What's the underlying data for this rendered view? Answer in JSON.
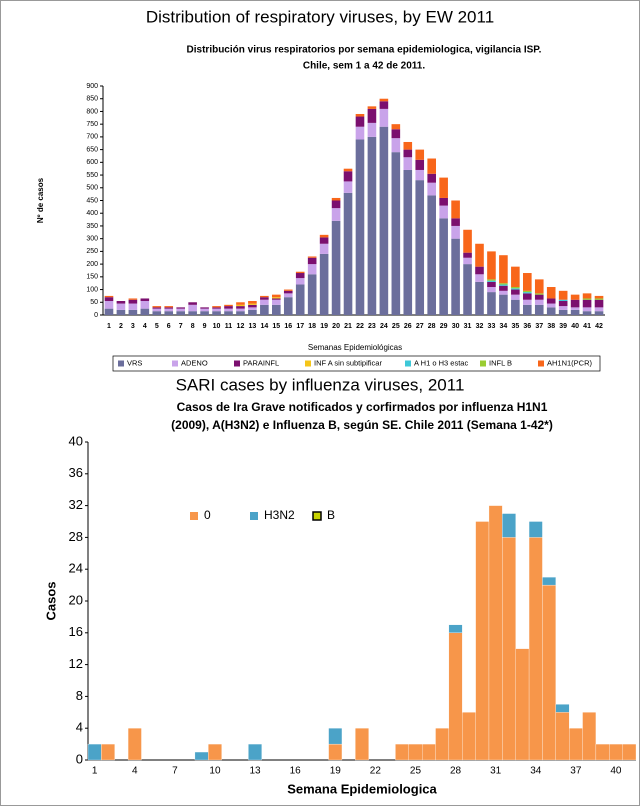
{
  "chart_data": [
    {
      "type": "bar",
      "stacked": true,
      "heading": "Distribution of respiratory viruses, by EW 2011",
      "title": [
        "Distribución virus respiratorios por semana epidemiologica, vigilancia ISP.",
        "Chile, sem 1 a 42 de 2011."
      ],
      "y_label": "Nº de casos",
      "x_label": "Semanas Epidemiológicas",
      "categories": [
        "1",
        "2",
        "3",
        "4",
        "5",
        "6",
        "7",
        "8",
        "9",
        "10",
        "11",
        "12",
        "13",
        "14",
        "15",
        "16",
        "17",
        "18",
        "19",
        "20",
        "21",
        "22",
        "23",
        "24",
        "25",
        "26",
        "27",
        "28",
        "29",
        "30",
        "31",
        "32",
        "33",
        "34",
        "35",
        "36",
        "37",
        "38",
        "39",
        "40",
        "41",
        "42"
      ],
      "ylim": [
        0,
        900
      ],
      "yticks": [
        0,
        50,
        100,
        150,
        200,
        250,
        300,
        350,
        400,
        450,
        500,
        550,
        600,
        650,
        700,
        750,
        800,
        850,
        900
      ],
      "legend": "bottom",
      "series": [
        {
          "name": "VRS",
          "color": "#6b6e9c",
          "values": [
            25,
            20,
            20,
            25,
            15,
            15,
            15,
            15,
            15,
            15,
            15,
            15,
            20,
            40,
            40,
            70,
            120,
            160,
            240,
            370,
            480,
            690,
            700,
            740,
            640,
            570,
            530,
            470,
            380,
            300,
            200,
            130,
            90,
            80,
            60,
            40,
            40,
            30,
            20,
            20,
            15,
            15
          ]
        },
        {
          "name": "ADENO",
          "color": "#c9a3ea",
          "values": [
            30,
            25,
            25,
            30,
            10,
            10,
            10,
            25,
            10,
            10,
            10,
            10,
            10,
            20,
            20,
            15,
            25,
            40,
            40,
            50,
            45,
            50,
            55,
            70,
            55,
            50,
            40,
            50,
            50,
            50,
            25,
            30,
            20,
            15,
            20,
            20,
            20,
            15,
            15,
            10,
            15,
            15
          ]
        },
        {
          "name": "PARAINFL",
          "color": "#7b0f6f",
          "values": [
            15,
            10,
            15,
            10,
            5,
            5,
            5,
            10,
            5,
            5,
            10,
            10,
            10,
            10,
            5,
            10,
            20,
            25,
            25,
            30,
            40,
            40,
            55,
            30,
            35,
            30,
            40,
            35,
            30,
            30,
            20,
            30,
            20,
            20,
            20,
            25,
            20,
            20,
            20,
            30,
            30,
            30
          ]
        },
        {
          "name": "INF A sin subtipificar",
          "color": "#f5c518",
          "values": [
            0,
            0,
            0,
            0,
            0,
            0,
            0,
            0,
            0,
            0,
            0,
            5,
            5,
            0,
            5,
            0,
            0,
            0,
            0,
            0,
            0,
            0,
            0,
            0,
            0,
            0,
            0,
            0,
            0,
            0,
            0,
            0,
            0,
            0,
            0,
            0,
            0,
            0,
            0,
            0,
            0,
            0
          ]
        },
        {
          "name": "A H1 o H3 estac",
          "color": "#3ec8d8",
          "values": [
            0,
            0,
            0,
            0,
            0,
            0,
            0,
            0,
            0,
            0,
            0,
            0,
            0,
            0,
            0,
            0,
            0,
            0,
            0,
            0,
            0,
            0,
            0,
            0,
            0,
            0,
            0,
            0,
            0,
            0,
            0,
            0,
            5,
            5,
            5,
            5,
            0,
            0,
            5,
            0,
            0,
            0
          ]
        },
        {
          "name": "INFL B",
          "color": "#9acd32",
          "values": [
            0,
            0,
            0,
            0,
            0,
            0,
            0,
            0,
            0,
            0,
            0,
            0,
            0,
            0,
            0,
            0,
            0,
            0,
            0,
            0,
            0,
            0,
            0,
            0,
            0,
            0,
            0,
            0,
            0,
            0,
            0,
            0,
            5,
            5,
            5,
            5,
            5,
            0,
            0,
            0,
            5,
            5
          ]
        },
        {
          "name": "AH1N1(PCR)",
          "color": "#f8661a",
          "values": [
            5,
            0,
            5,
            0,
            5,
            5,
            0,
            0,
            0,
            5,
            5,
            10,
            10,
            5,
            10,
            5,
            5,
            5,
            10,
            10,
            10,
            10,
            10,
            10,
            20,
            30,
            40,
            60,
            80,
            70,
            90,
            90,
            110,
            110,
            80,
            70,
            55,
            45,
            35,
            20,
            20,
            10
          ]
        }
      ]
    },
    {
      "type": "bar",
      "stacked": true,
      "heading": "SARI cases by influenza viruses, 2011",
      "title": [
        "Casos de Ira Grave notificados y corfirmados por influenza H1N1",
        "(2009), A(H3N2) e Influenza B, según SE. Chile 2011 (Semana 1-42*)"
      ],
      "y_label": "Casos",
      "x_label": "Semana Epidemiologica",
      "categories": [
        "1",
        null,
        null,
        "4",
        null,
        null,
        "7",
        null,
        null,
        "10",
        null,
        null,
        "13",
        null,
        null,
        "16",
        null,
        null,
        "19",
        null,
        null,
        "22",
        null,
        null,
        "25",
        null,
        null,
        "28",
        null,
        null,
        "31",
        null,
        null,
        "34",
        null,
        null,
        "37",
        null,
        null,
        "40",
        null
      ],
      "ylim": [
        0,
        40
      ],
      "yticks": [
        0,
        4,
        8,
        12,
        16,
        20,
        24,
        28,
        32,
        36,
        40
      ],
      "legend": "top-left",
      "series": [
        {
          "name": "0",
          "color": "#f7964a",
          "values": [
            0,
            2,
            0,
            4,
            0,
            0,
            0,
            0,
            0,
            2,
            0,
            0,
            0,
            0,
            0,
            0,
            0,
            0,
            2,
            0,
            4,
            0,
            0,
            2,
            2,
            2,
            4,
            16,
            6,
            30,
            32,
            28,
            14,
            28,
            22,
            6,
            4,
            6,
            2,
            2,
            2
          ]
        },
        {
          "name": "H3N2",
          "color": "#4ba3c8",
          "values": [
            2,
            0,
            0,
            0,
            0,
            0,
            0,
            0,
            1,
            0,
            0,
            0,
            2,
            0,
            0,
            0,
            0,
            0,
            2,
            0,
            0,
            0,
            0,
            0,
            0,
            0,
            0,
            1,
            0,
            0,
            0,
            3,
            0,
            2,
            1,
            1,
            0,
            0,
            0,
            0,
            0
          ]
        },
        {
          "name": "B",
          "color": "#c8d400",
          "values": [
            0,
            0,
            0,
            0,
            0,
            0,
            0,
            0,
            0,
            0,
            0,
            0,
            0,
            0,
            0,
            0,
            0,
            0,
            0,
            0,
            0,
            0,
            0,
            0,
            0,
            0,
            0,
            0,
            0,
            0,
            0,
            0,
            0,
            0,
            0,
            0,
            0,
            0,
            0,
            0,
            0
          ]
        }
      ]
    }
  ]
}
